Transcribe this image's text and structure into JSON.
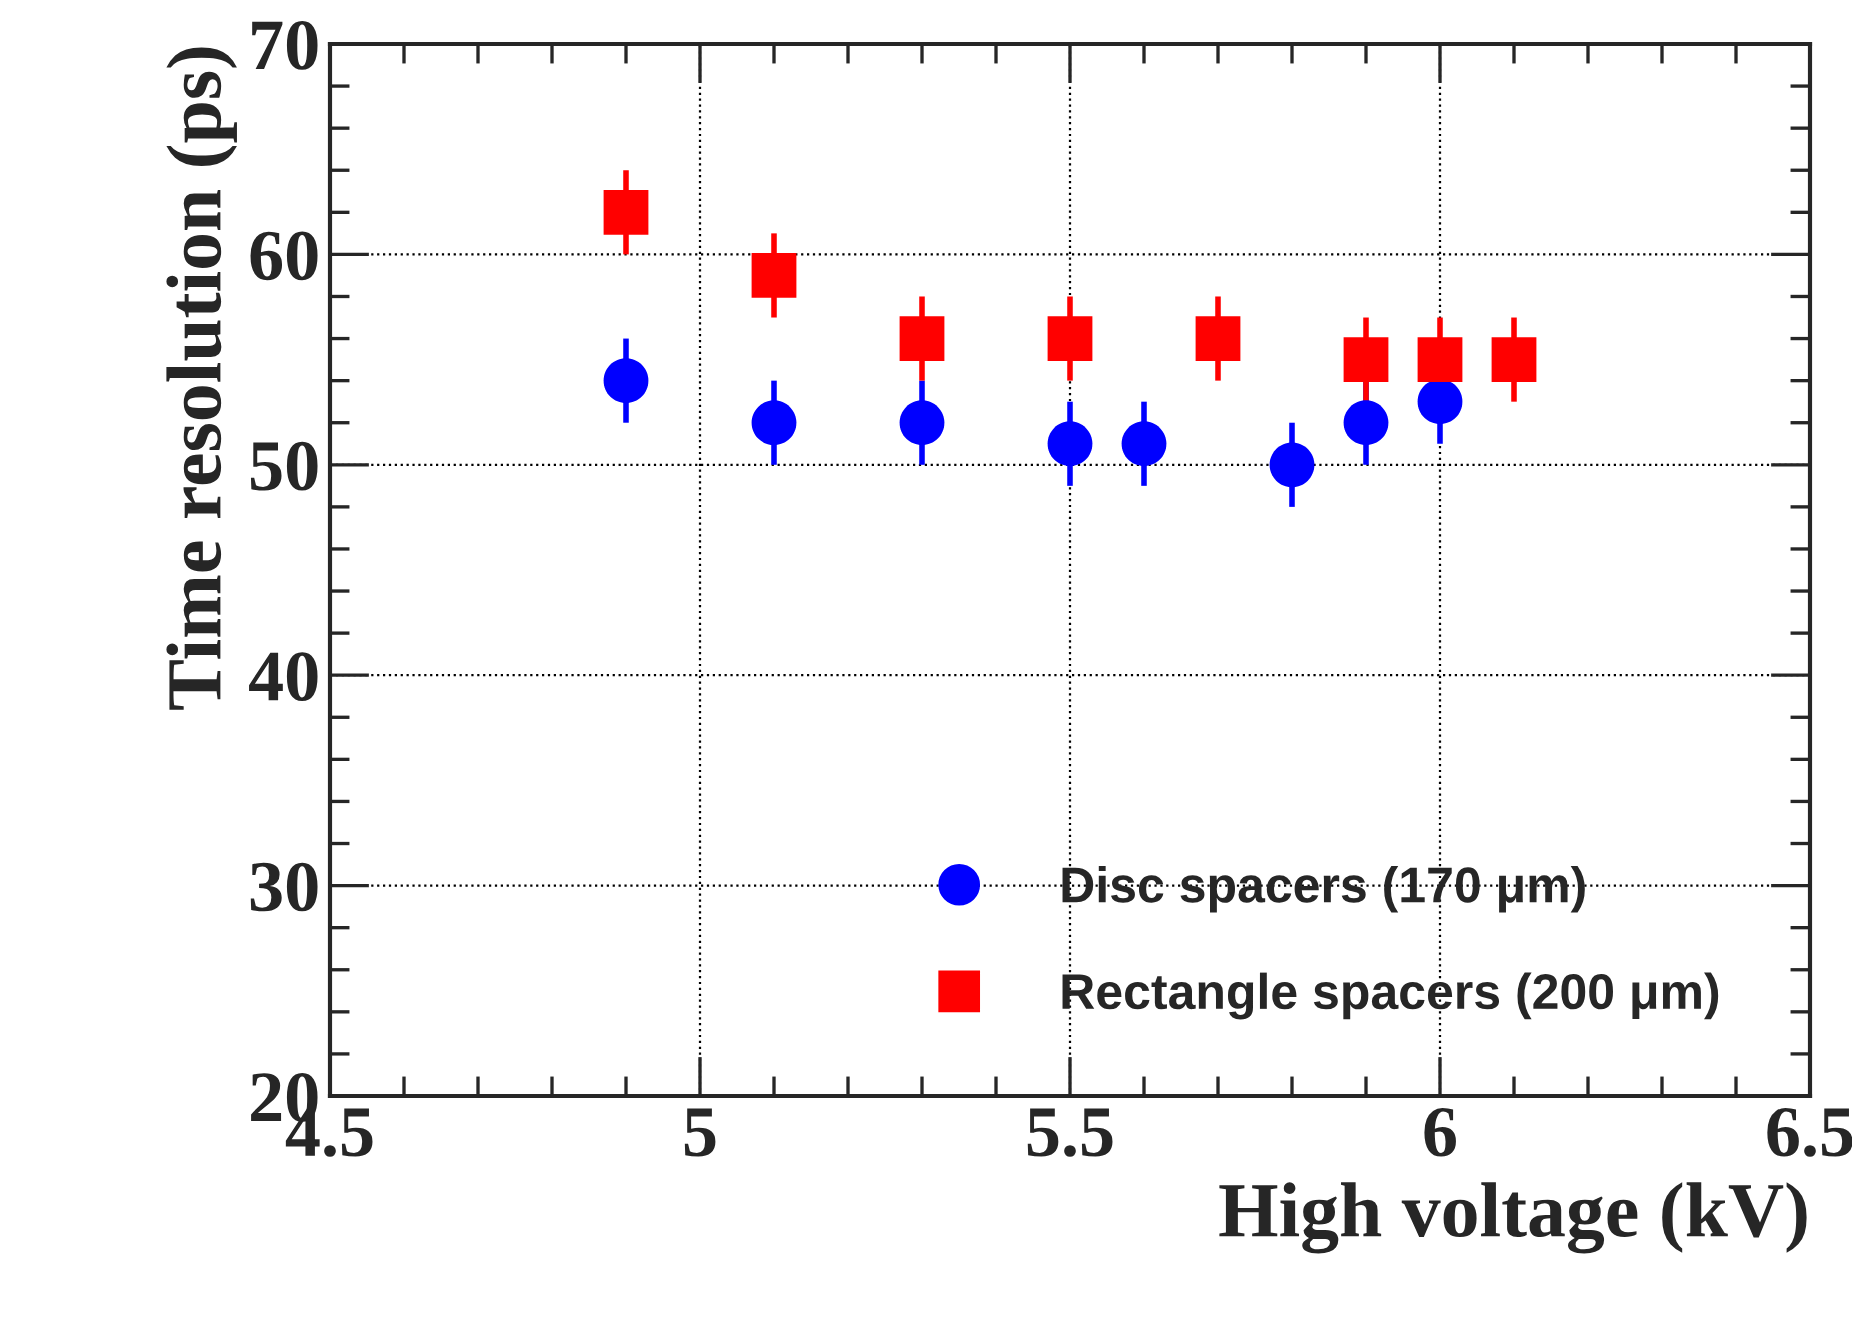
{
  "chart_data": {
    "type": "scatter",
    "xlabel": "High voltage (kV)",
    "ylabel": "Time resolution (ps)",
    "series": [
      {
        "name": "Disc spacers (170 μm)",
        "color": "#0000ff",
        "marker": "circle",
        "x": [
          4.9,
          5.1,
          5.3,
          5.5,
          5.6,
          5.8,
          5.9,
          6.0
        ],
        "values": [
          54,
          52,
          52,
          51,
          51,
          50,
          52,
          53
        ],
        "errors": [
          2,
          2,
          2,
          2,
          2,
          2,
          2,
          2
        ]
      },
      {
        "name": "Rectangle spacers (200 μm)",
        "color": "#ff0000",
        "marker": "square",
        "x": [
          4.9,
          5.1,
          5.3,
          5.5,
          5.7,
          5.9,
          6.0,
          6.1
        ],
        "values": [
          62,
          59,
          56,
          56,
          56,
          55,
          55,
          55
        ],
        "errors": [
          2,
          2,
          2,
          2,
          2,
          2,
          2,
          2
        ]
      }
    ],
    "xlim": [
      4.5,
      6.5
    ],
    "xticks": [
      4.5,
      5,
      5.5,
      6,
      6.5
    ],
    "ylim": [
      20,
      70
    ],
    "yticks": [
      20,
      30,
      40,
      50,
      60,
      70
    ],
    "grid": true,
    "legend": "bottom right"
  }
}
